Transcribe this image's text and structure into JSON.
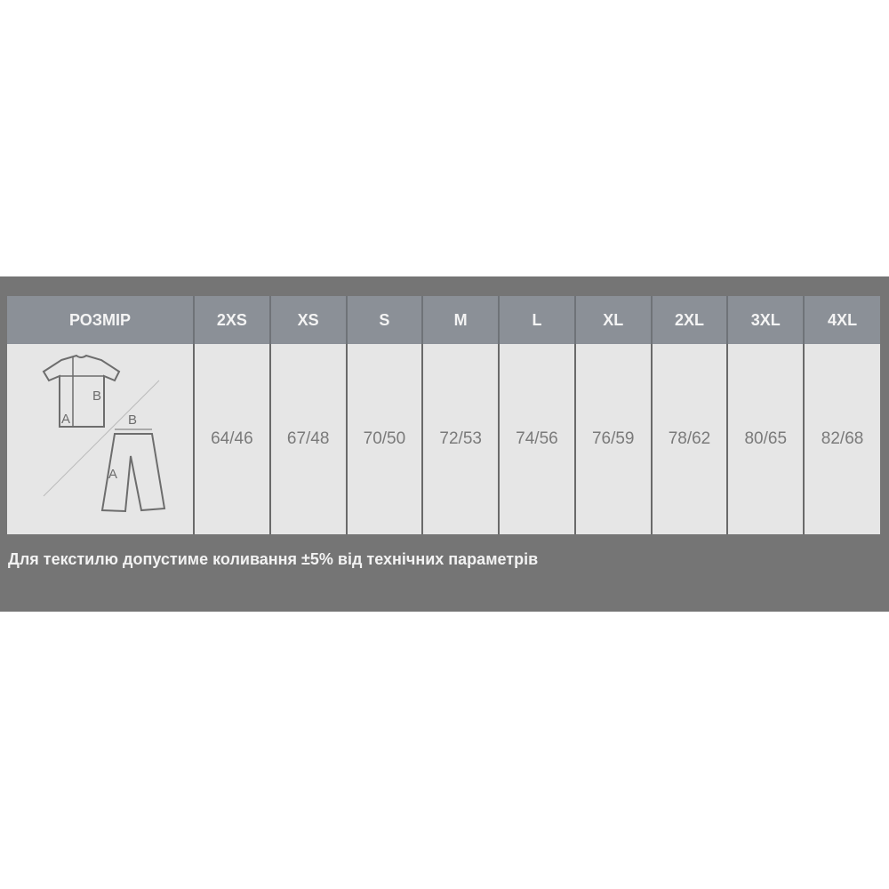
{
  "table": {
    "header_label": "РОЗМІР",
    "sizes": [
      "2XS",
      "XS",
      "S",
      "M",
      "L",
      "XL",
      "2XL",
      "3XL",
      "4XL"
    ],
    "values": [
      "64/46",
      "67/48",
      "70/50",
      "72/53",
      "74/56",
      "76/59",
      "78/62",
      "80/65",
      "82/68"
    ],
    "diagram": {
      "shirt_labels": [
        "A",
        "B"
      ],
      "pants_labels": [
        "B",
        "A"
      ]
    }
  },
  "note": "Для текстилю допустиме коливання ±5% від технічних параметрів"
}
